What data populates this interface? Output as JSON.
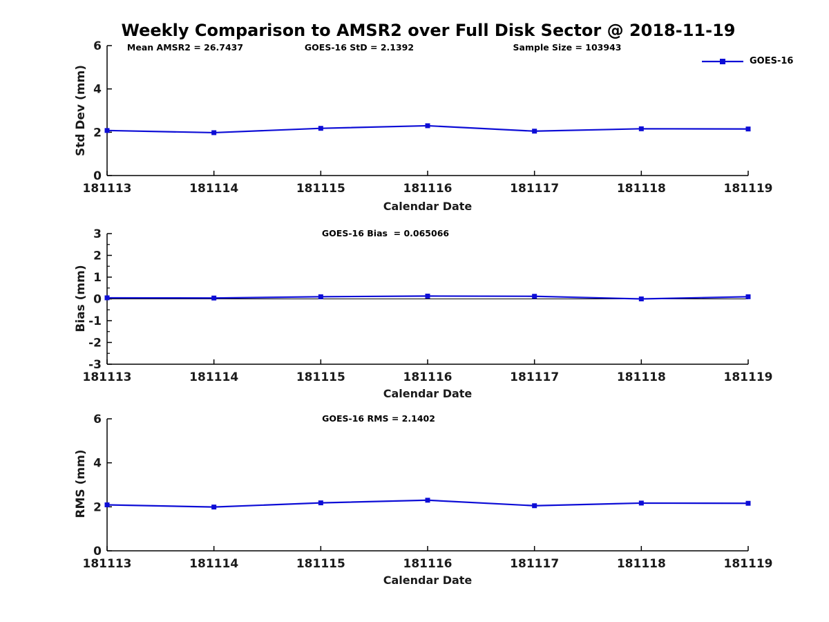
{
  "figure": {
    "title": "Weekly Comparison to AMSR2 over Full Disk Sector @ 2018-11-19",
    "legend": {
      "label": "GOES-16"
    },
    "colors": {
      "series": "#0d0dd6",
      "axis": "#000000",
      "text": "#1a1a1a"
    }
  },
  "chart_data": [
    {
      "type": "line",
      "ylabel": "Std Dev (mm)",
      "xlabel": "Calendar Date",
      "categories": [
        "181113",
        "181114",
        "181115",
        "181116",
        "181117",
        "181118",
        "181119"
      ],
      "series": [
        {
          "name": "GOES-16",
          "values": [
            2.08,
            1.98,
            2.18,
            2.3,
            2.05,
            2.16,
            2.15
          ]
        }
      ],
      "ylim": [
        0,
        6
      ],
      "yticks": [
        0,
        2,
        4,
        6
      ],
      "minor_ytick_step": null,
      "zero_line": false,
      "grid": false,
      "legend_position": "upper right, outside axes",
      "annotations": [
        "Mean AMSR2 = 26.7437",
        "GOES-16 StD = 2.1392",
        "Sample Size = 103943"
      ]
    },
    {
      "type": "line",
      "ylabel": "Bias (mm)",
      "xlabel": "Calendar Date",
      "categories": [
        "181113",
        "181114",
        "181115",
        "181116",
        "181117",
        "181118",
        "181119"
      ],
      "series": [
        {
          "name": "GOES-16",
          "values": [
            0.05,
            0.04,
            0.1,
            0.13,
            0.12,
            0.0,
            0.1
          ]
        }
      ],
      "ylim": [
        -3,
        3
      ],
      "yticks": [
        3,
        2,
        1,
        0,
        -1,
        -2,
        -3
      ],
      "minor_ytick_step": 0.5,
      "zero_line": true,
      "grid": false,
      "annotations": [
        "GOES-16 Bias  = 0.065066"
      ]
    },
    {
      "type": "line",
      "ylabel": "RMS (mm)",
      "xlabel": "Calendar Date",
      "categories": [
        "181113",
        "181114",
        "181115",
        "181116",
        "181117",
        "181118",
        "181119"
      ],
      "series": [
        {
          "name": "GOES-16",
          "values": [
            2.09,
            1.99,
            2.18,
            2.3,
            2.05,
            2.17,
            2.16
          ]
        }
      ],
      "ylim": [
        0,
        6
      ],
      "yticks": [
        0,
        2,
        4,
        6
      ],
      "minor_ytick_step": null,
      "zero_line": false,
      "grid": false,
      "annotations": [
        "GOES-16 RMS = 2.1402"
      ]
    }
  ]
}
